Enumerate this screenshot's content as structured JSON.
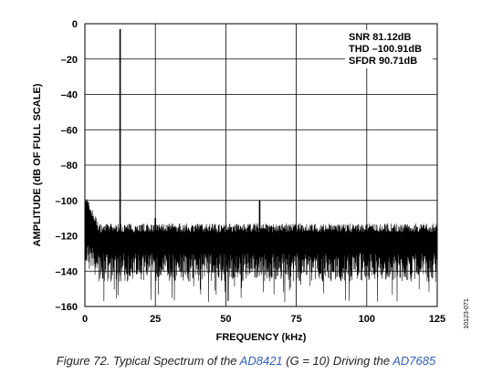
{
  "chart_data": {
    "type": "line",
    "title": "",
    "xlabel": "FREQUENCY (kHz)",
    "ylabel": "AMPLITUDE (dB OF FULL SCALE)",
    "xlim": [
      0,
      125
    ],
    "ylim": [
      -160,
      0
    ],
    "xticks": [
      "0",
      "25",
      "50",
      "75",
      "100",
      "125"
    ],
    "yticks": [
      "0",
      "–20",
      "–40",
      "–60",
      "–80",
      "–100",
      "–120",
      "–140",
      "–160"
    ],
    "grid": true,
    "annotations": [
      "SNR 81.12dB",
      "THD –100.91dB",
      "SFDR 90.71dB"
    ],
    "series": [
      {
        "noise_floor_db": -122,
        "noise_min_db": -158,
        "low_frequency_rise_db": -105,
        "x": [
          0,
          1,
          2,
          3,
          4,
          5,
          8,
          12,
          12.5,
          13,
          16,
          24,
          25,
          26,
          37,
          38,
          50,
          61,
          62,
          63,
          75,
          76,
          87,
          88,
          100,
          112,
          113,
          125
        ],
        "y": [
          -104,
          -108,
          -110,
          -112,
          -115,
          -117,
          -120,
          -121,
          -3,
          -121,
          -121,
          -121,
          -110,
          -121,
          -121,
          -117,
          -121,
          -121,
          -100,
          -121,
          -121,
          -119,
          -121,
          -119,
          -121,
          -121,
          -118,
          -121
        ]
      }
    ]
  },
  "figure_id": "10123-071",
  "caption": {
    "prefix": "Figure 72. Typical Spectrum of the ",
    "link1": "AD8421",
    "middle": " (G = 10) Driving the ",
    "link2": "AD7685"
  }
}
